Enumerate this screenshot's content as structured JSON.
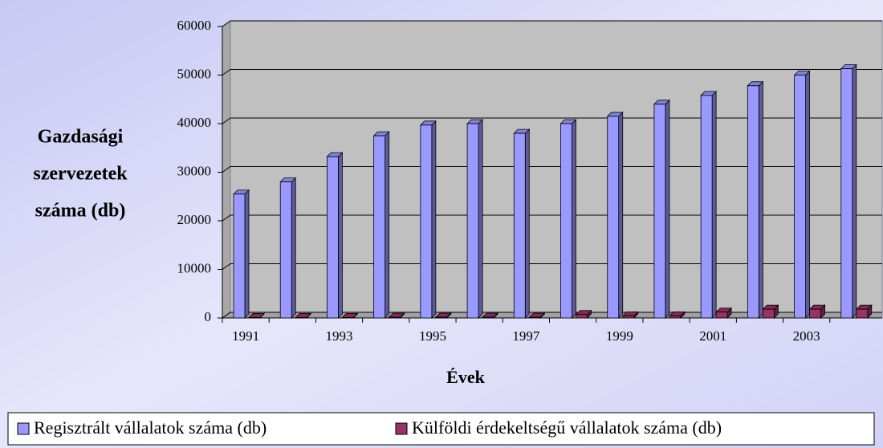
{
  "chart_data": {
    "type": "bar3d",
    "ylabel": [
      "Gazdasági",
      "szervezetek",
      "száma (db)"
    ],
    "xlabel": "Évek",
    "categories": [
      "1991",
      null,
      "1993",
      null,
      "1995",
      null,
      "1997",
      null,
      "1999",
      null,
      "2001",
      null,
      "2003",
      null
    ],
    "series": [
      {
        "name": "Regisztrált vállalatok száma (db)",
        "color": "#9999ff",
        "values": [
          25500,
          28000,
          33200,
          37500,
          39700,
          40000,
          38000,
          40000,
          41500,
          44000,
          45800,
          47800,
          50000,
          51300
        ]
      },
      {
        "name": "Külföldi érdekeltségű vállalatok száma (db)",
        "color": "#993366",
        "values": [
          100,
          100,
          100,
          150,
          150,
          150,
          150,
          700,
          400,
          400,
          1200,
          1800,
          1800,
          1800
        ]
      }
    ],
    "ylim": [
      0,
      60000
    ],
    "yticks": [
      0,
      10000,
      20000,
      30000,
      40000,
      50000,
      60000
    ],
    "grid": true,
    "legend": "bottom"
  }
}
